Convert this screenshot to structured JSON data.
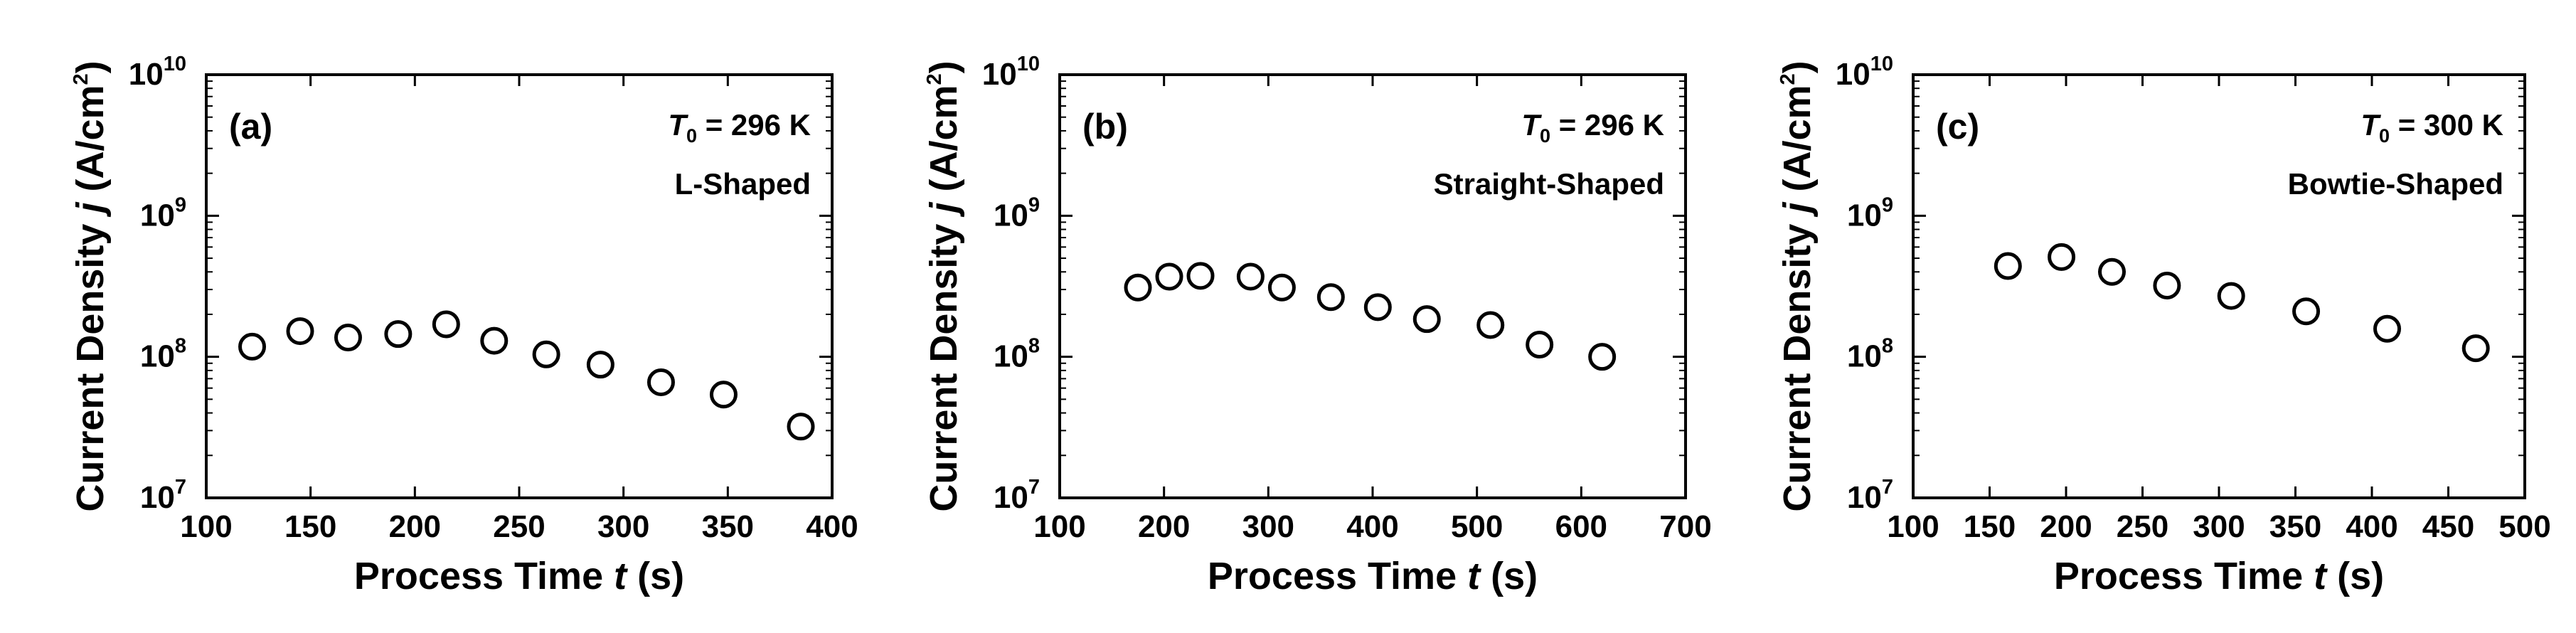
{
  "chart_data": [
    {
      "type": "scatter",
      "panel_label": "(a)",
      "annotation": {
        "var": "T",
        "sub": "0",
        "text": " = 296 K"
      },
      "shape": "L-Shaped",
      "xlabel": {
        "pre": "Process Time ",
        "var": "t",
        "post": " (s)"
      },
      "ylabel": {
        "pre": "Current Density ",
        "var": "j",
        "unit": " (A/cm",
        "sup": "2",
        "close": ")"
      },
      "xlim": [
        100,
        400
      ],
      "xticks": [
        100,
        150,
        200,
        250,
        300,
        350,
        400
      ],
      "yscale": "log",
      "ylim": [
        10000000,
        10000000000
      ],
      "yticks": [
        {
          "base": "10",
          "exp": "7"
        },
        {
          "base": "10",
          "exp": "8"
        },
        {
          "base": "10",
          "exp": "9"
        },
        {
          "base": "10",
          "exp": "10"
        }
      ],
      "x": [
        122,
        145,
        168,
        192,
        215,
        238,
        263,
        289,
        318,
        348,
        385
      ],
      "y": [
        118000000,
        152000000,
        137000000,
        145000000,
        170000000,
        130000000,
        104000000,
        88000000,
        66000000,
        54000000,
        32000000
      ]
    },
    {
      "type": "scatter",
      "panel_label": "(b)",
      "annotation": {
        "var": "T",
        "sub": "0",
        "text": " = 296 K"
      },
      "shape": "Straight-Shaped",
      "xlabel": {
        "pre": "Process Time ",
        "var": "t",
        "post": " (s)"
      },
      "ylabel": {
        "pre": "Current Density ",
        "var": "j",
        "unit": " (A/cm",
        "sup": "2",
        "close": ")"
      },
      "xlim": [
        100,
        700
      ],
      "xticks": [
        100,
        200,
        300,
        400,
        500,
        600,
        700
      ],
      "yscale": "log",
      "ylim": [
        10000000,
        10000000000
      ],
      "yticks": [
        {
          "base": "10",
          "exp": "7"
        },
        {
          "base": "10",
          "exp": "8"
        },
        {
          "base": "10",
          "exp": "9"
        },
        {
          "base": "10",
          "exp": "10"
        }
      ],
      "x": [
        175,
        205,
        235,
        283,
        313,
        360,
        405,
        452,
        513,
        560,
        620
      ],
      "y": [
        310000000,
        370000000,
        375000000,
        370000000,
        310000000,
        265000000,
        225000000,
        185000000,
        168000000,
        122000000,
        100000000
      ]
    },
    {
      "type": "scatter",
      "panel_label": "(c)",
      "annotation": {
        "var": "T",
        "sub": "0",
        "text": " = 300 K"
      },
      "shape": "Bowtie-Shaped",
      "xlabel": {
        "pre": "Process Time ",
        "var": "t",
        "post": " (s)"
      },
      "ylabel": {
        "pre": "Current Density ",
        "var": "j",
        "unit": " (A/cm",
        "sup": "2",
        "close": ")"
      },
      "xlim": [
        100,
        500
      ],
      "xticks": [
        100,
        150,
        200,
        250,
        300,
        350,
        400,
        450,
        500
      ],
      "yscale": "log",
      "ylim": [
        10000000,
        10000000000
      ],
      "yticks": [
        {
          "base": "10",
          "exp": "7"
        },
        {
          "base": "10",
          "exp": "8"
        },
        {
          "base": "10",
          "exp": "9"
        },
        {
          "base": "10",
          "exp": "10"
        }
      ],
      "x": [
        162,
        197,
        230,
        266,
        308,
        357,
        410,
        468
      ],
      "y": [
        440000000,
        510000000,
        400000000,
        320000000,
        270000000,
        210000000,
        158000000,
        115000000
      ]
    }
  ]
}
